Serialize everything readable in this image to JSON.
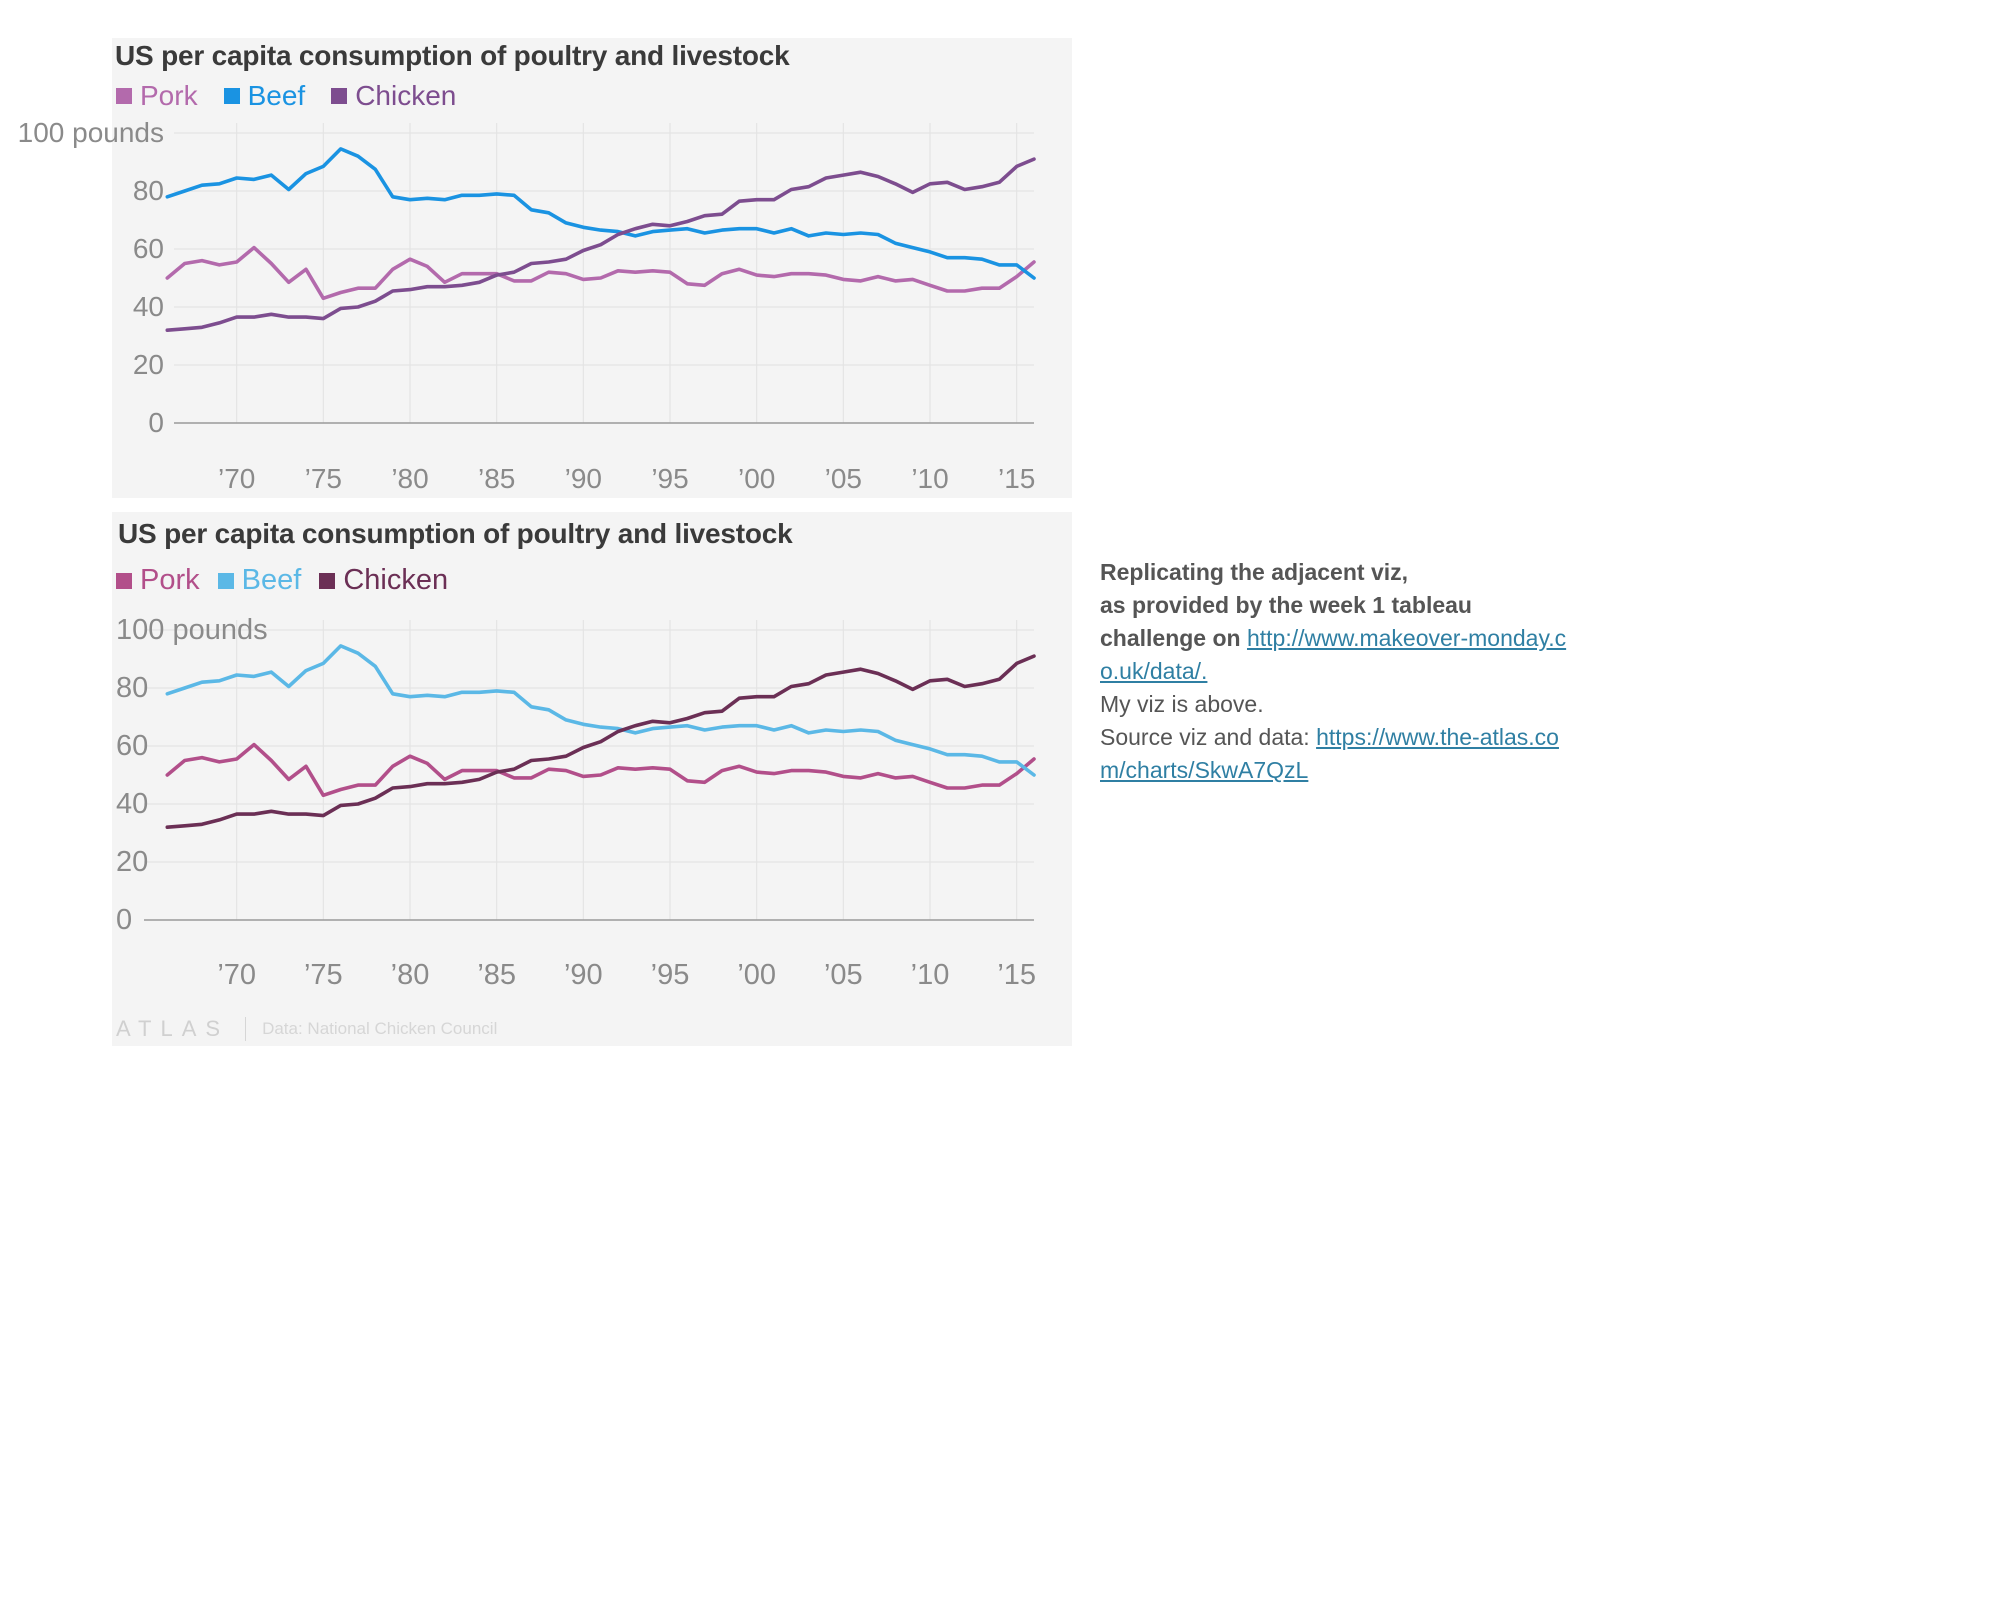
{
  "charts": [
    {
      "title": "US per capita consumption of poultry and livestock",
      "colors": {
        "Pork": "#b36aac",
        "Beef": "#1a93e2",
        "Chicken": "#7d4d8f"
      }
    },
    {
      "title": "US per capita consumption of poultry and livestock",
      "colors": {
        "Pork": "#b24f8a",
        "Beef": "#5bb8e6",
        "Chicken": "#6b2f55"
      },
      "footer": {
        "logo": "ATLAS",
        "source": "Data: National Chicken Council"
      }
    }
  ],
  "note": {
    "line1": "Replicating the adjacent viz,",
    "line2": "as provided by the week 1 tableau",
    "line3": "challenge on",
    "link1": "http://www.makeover-monday.co.uk/data/.",
    "line4": "My viz is above.",
    "line5": "Source viz and data:",
    "link2": "https://www.the-atlas.com/charts/SkwA7QzL"
  },
  "chart_data": [
    {
      "type": "line",
      "title": "US per capita consumption of poultry and livestock",
      "ylabel": "pounds",
      "ylim": [
        0,
        100
      ],
      "yticks": [
        0,
        20,
        40,
        60,
        80,
        100
      ],
      "ytick_labels": [
        "0",
        "20",
        "40",
        "60",
        "80",
        "100 pounds"
      ],
      "xlim": [
        1965,
        2016
      ],
      "xticks": [
        1970,
        1975,
        1980,
        1985,
        1990,
        1995,
        2000,
        2005,
        2010,
        2015
      ],
      "xtick_labels": [
        "’70",
        "’75",
        "’80",
        "’85",
        "’90",
        "’95",
        "’00",
        "’05",
        "’10",
        "’15"
      ],
      "grid": true,
      "legend": "top-left",
      "x": [
        1966,
        1967,
        1968,
        1969,
        1970,
        1971,
        1972,
        1973,
        1974,
        1975,
        1976,
        1977,
        1978,
        1979,
        1980,
        1981,
        1982,
        1983,
        1984,
        1985,
        1986,
        1987,
        1988,
        1989,
        1990,
        1991,
        1992,
        1993,
        1994,
        1995,
        1996,
        1997,
        1998,
        1999,
        2000,
        2001,
        2002,
        2003,
        2004,
        2005,
        2006,
        2007,
        2008,
        2009,
        2010,
        2011,
        2012,
        2013,
        2014,
        2015,
        2016
      ],
      "series": [
        {
          "name": "Pork",
          "values": [
            50,
            55,
            56,
            54.5,
            55.5,
            60.5,
            55,
            48.5,
            53,
            43,
            45,
            46.5,
            46.5,
            53,
            56.5,
            54,
            48.5,
            51.5,
            51.5,
            51.5,
            49,
            49,
            52,
            51.5,
            49.5,
            50,
            52.5,
            52,
            52.5,
            52,
            48,
            47.5,
            51.5,
            53,
            51,
            50.5,
            51.5,
            51.5,
            51,
            49.5,
            49,
            50.5,
            49,
            49.5,
            47.5,
            45.5,
            45.5,
            46.5,
            46.5,
            50.5,
            55.5
          ]
        },
        {
          "name": "Beef",
          "values": [
            78,
            80,
            82,
            82.5,
            84.5,
            84,
            85.5,
            80.5,
            86,
            88.5,
            94.5,
            92,
            87.5,
            78,
            77,
            77.5,
            77,
            78.5,
            78.5,
            79,
            78.5,
            73.5,
            72.5,
            69,
            67.5,
            66.5,
            66,
            64.5,
            66,
            66.5,
            67,
            65.5,
            66.5,
            67,
            67,
            65.5,
            67,
            64.5,
            65.5,
            65,
            65.5,
            65,
            62,
            60.5,
            59,
            57,
            57,
            56.5,
            54.5,
            54.5,
            50
          ]
        },
        {
          "name": "Chicken",
          "values": [
            32,
            32.5,
            33,
            34.5,
            36.5,
            36.5,
            37.5,
            36.5,
            36.5,
            36,
            39.5,
            40,
            42,
            45.5,
            46,
            47,
            47,
            47.5,
            48.5,
            51,
            52,
            55,
            55.5,
            56.5,
            59.5,
            61.5,
            65,
            67,
            68.5,
            68,
            69.5,
            71.5,
            72,
            76.5,
            77,
            77,
            80.5,
            81.5,
            84.5,
            85.5,
            86.5,
            85,
            82.5,
            79.5,
            82.5,
            83,
            80.5,
            81.5,
            83,
            88.5,
            91
          ]
        }
      ]
    },
    {
      "type": "line",
      "title": "US per capita consumption of poultry and livestock",
      "ylabel": "pounds",
      "ylim": [
        0,
        100
      ],
      "yticks": [
        0,
        20,
        40,
        60,
        80,
        100
      ],
      "ytick_labels": [
        "0",
        "20",
        "40",
        "60",
        "80",
        "100 pounds"
      ],
      "xlim": [
        1965,
        2016
      ],
      "xticks": [
        1970,
        1975,
        1980,
        1985,
        1990,
        1995,
        2000,
        2005,
        2010,
        2015
      ],
      "xtick_labels": [
        "’70",
        "’75",
        "’80",
        "’85",
        "’90",
        "’95",
        "’00",
        "’05",
        "’10",
        "’15"
      ],
      "grid": true,
      "legend": "top-left",
      "x": [
        1966,
        1967,
        1968,
        1969,
        1970,
        1971,
        1972,
        1973,
        1974,
        1975,
        1976,
        1977,
        1978,
        1979,
        1980,
        1981,
        1982,
        1983,
        1984,
        1985,
        1986,
        1987,
        1988,
        1989,
        1990,
        1991,
        1992,
        1993,
        1994,
        1995,
        1996,
        1997,
        1998,
        1999,
        2000,
        2001,
        2002,
        2003,
        2004,
        2005,
        2006,
        2007,
        2008,
        2009,
        2010,
        2011,
        2012,
        2013,
        2014,
        2015,
        2016
      ],
      "series": [
        {
          "name": "Pork",
          "values": [
            50,
            55,
            56,
            54.5,
            55.5,
            60.5,
            55,
            48.5,
            53,
            43,
            45,
            46.5,
            46.5,
            53,
            56.5,
            54,
            48.5,
            51.5,
            51.5,
            51.5,
            49,
            49,
            52,
            51.5,
            49.5,
            50,
            52.5,
            52,
            52.5,
            52,
            48,
            47.5,
            51.5,
            53,
            51,
            50.5,
            51.5,
            51.5,
            51,
            49.5,
            49,
            50.5,
            49,
            49.5,
            47.5,
            45.5,
            45.5,
            46.5,
            46.5,
            50.5,
            55.5
          ]
        },
        {
          "name": "Beef",
          "values": [
            78,
            80,
            82,
            82.5,
            84.5,
            84,
            85.5,
            80.5,
            86,
            88.5,
            94.5,
            92,
            87.5,
            78,
            77,
            77.5,
            77,
            78.5,
            78.5,
            79,
            78.5,
            73.5,
            72.5,
            69,
            67.5,
            66.5,
            66,
            64.5,
            66,
            66.5,
            67,
            65.5,
            66.5,
            67,
            67,
            65.5,
            67,
            64.5,
            65.5,
            65,
            65.5,
            65,
            62,
            60.5,
            59,
            57,
            57,
            56.5,
            54.5,
            54.5,
            50
          ]
        },
        {
          "name": "Chicken",
          "values": [
            32,
            32.5,
            33,
            34.5,
            36.5,
            36.5,
            37.5,
            36.5,
            36.5,
            36,
            39.5,
            40,
            42,
            45.5,
            46,
            47,
            47,
            47.5,
            48.5,
            51,
            52,
            55,
            55.5,
            56.5,
            59.5,
            61.5,
            65,
            67,
            68.5,
            68,
            69.5,
            71.5,
            72,
            76.5,
            77,
            77,
            80.5,
            81.5,
            84.5,
            85.5,
            86.5,
            85,
            82.5,
            79.5,
            82.5,
            83,
            80.5,
            81.5,
            83,
            88.5,
            91
          ]
        }
      ]
    }
  ]
}
